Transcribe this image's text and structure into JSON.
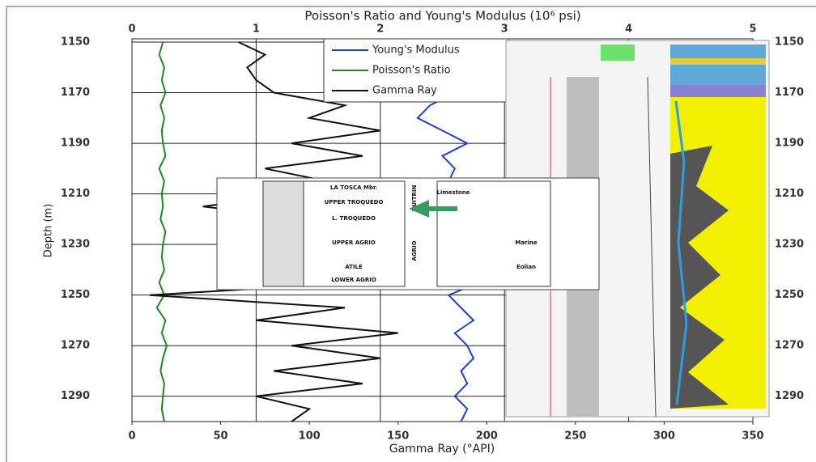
{
  "chart_data": {
    "type": "line",
    "title": "Poisson's Ratio and Young's Modulus (10⁶ psi)",
    "xlabel": "Gamma Ray (°API)",
    "ylabel": "Depth (m)",
    "ylim": [
      1150,
      1300
    ],
    "invert_y": true,
    "yticks": [
      1150,
      1170,
      1190,
      1210,
      1230,
      1250,
      1270,
      1290
    ],
    "xlim": [
      0,
      350
    ],
    "xticks": [
      0,
      50,
      100,
      150,
      200,
      250,
      300,
      350
    ],
    "x2lim": [
      0,
      5
    ],
    "x2ticks": [
      0,
      1,
      2,
      3,
      4,
      5
    ],
    "grid": true,
    "depth": [
      1150,
      1155,
      1160,
      1165,
      1170,
      1175,
      1180,
      1185,
      1190,
      1195,
      1200,
      1205,
      1210,
      1215,
      1220,
      1225,
      1230,
      1235,
      1240,
      1245,
      1250,
      1255,
      1260,
      1265,
      1270,
      1275,
      1280,
      1285,
      1290,
      1295,
      1300
    ],
    "series": [
      {
        "name": "Young's Modulus",
        "color": "#1f3fd0",
        "axis": "x2",
        "values": [
          2.4,
          2.5,
          2.45,
          2.5,
          2.6,
          2.4,
          2.3,
          2.5,
          2.7,
          2.5,
          2.6,
          2.55,
          2.6,
          2.65,
          2.5,
          2.6,
          2.55,
          2.7,
          2.6,
          2.8,
          2.55,
          2.65,
          2.75,
          2.6,
          2.7,
          2.75,
          2.65,
          2.7,
          2.6,
          2.7,
          2.65
        ]
      },
      {
        "name": "Poisson's Ratio",
        "color": "#1e8a1e",
        "axis": "x2",
        "values": [
          0.25,
          0.22,
          0.26,
          0.24,
          0.27,
          0.23,
          0.26,
          0.24,
          0.25,
          0.27,
          0.22,
          0.26,
          0.24,
          0.25,
          0.23,
          0.27,
          0.25,
          0.24,
          0.26,
          0.22,
          0.26,
          0.2,
          0.27,
          0.24,
          0.28,
          0.25,
          0.23,
          0.26,
          0.25,
          0.24,
          0.26
        ]
      },
      {
        "name": "Gamma Ray",
        "color": "#111111",
        "axis": "x",
        "values": [
          60,
          75,
          65,
          70,
          80,
          120,
          100,
          140,
          90,
          130,
          75,
          110,
          95,
          40,
          100,
          70,
          90,
          100,
          80,
          130,
          10,
          120,
          70,
          150,
          90,
          140,
          80,
          130,
          70,
          100,
          90
        ]
      }
    ]
  },
  "inset": {
    "labels": [
      "LA TOSCA Mbr.",
      "UPPER TROQUEDO",
      "L. TROQUEDO",
      "UPPER AGRIO",
      "ATILE",
      "LOWER AGRIO",
      "HUITRIN",
      "AGRIO",
      "Limestone",
      "Marine",
      "Eolian"
    ]
  }
}
